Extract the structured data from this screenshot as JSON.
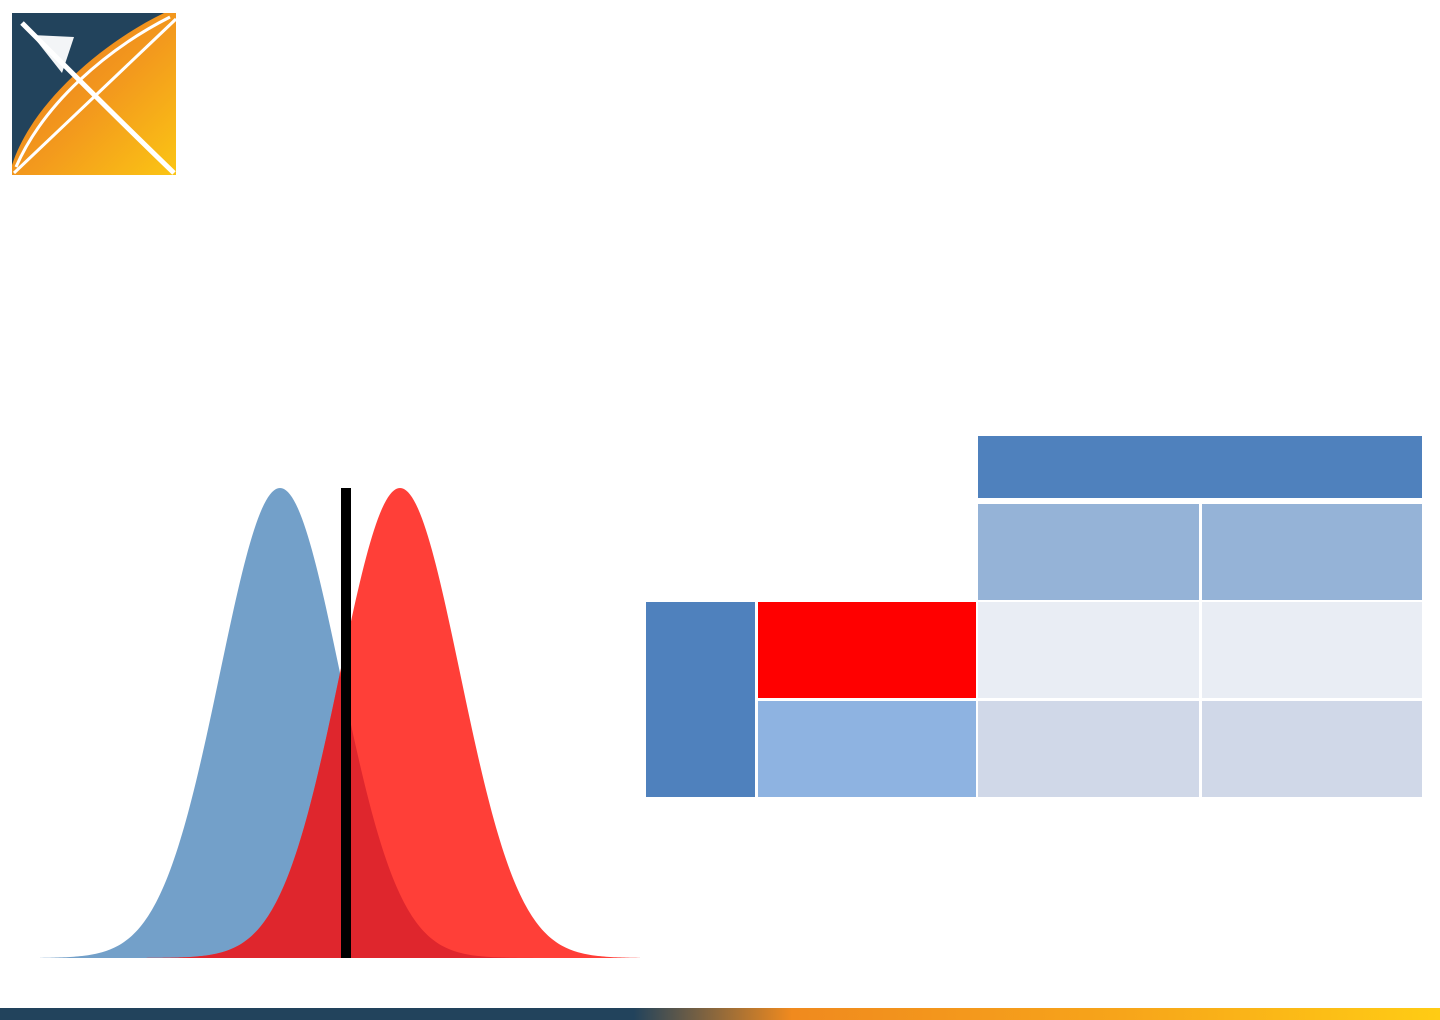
{
  "colors": {
    "logo_navy": "#22435C",
    "logo_orange": "#F08A1E",
    "logo_yellow": "#FAC214",
    "curve_blue": "#73A0C9",
    "curve_red": "#FF3F38",
    "curve_overlap": "#DF262D",
    "threshold_line": "#000000",
    "table_header": "#4F81BD",
    "table_subheader": "#95B3D7",
    "row_highlight_red": "#FF0000",
    "row_light_blue": "#8EB3E1",
    "cell_light_1": "#E9EDF4",
    "cell_light_2": "#D0D8E8",
    "bar_navy": "#22435C",
    "bar_orange": "#F08A1E",
    "bar_yellow": "#FFCC14"
  },
  "icons": {
    "logo": "x-logo-icon"
  },
  "chart_data": {
    "type": "area",
    "series": [
      {
        "mean": -1,
        "sd": 1,
        "color": "#73A0C9"
      },
      {
        "mean": 1,
        "sd": 1,
        "color": "#FF3F38"
      }
    ],
    "threshold": 0.1,
    "xlim": [
      -5,
      5
    ],
    "grid": false
  },
  "matrix": {
    "rows": 2,
    "cols": 2,
    "highlighted_row": 1
  }
}
